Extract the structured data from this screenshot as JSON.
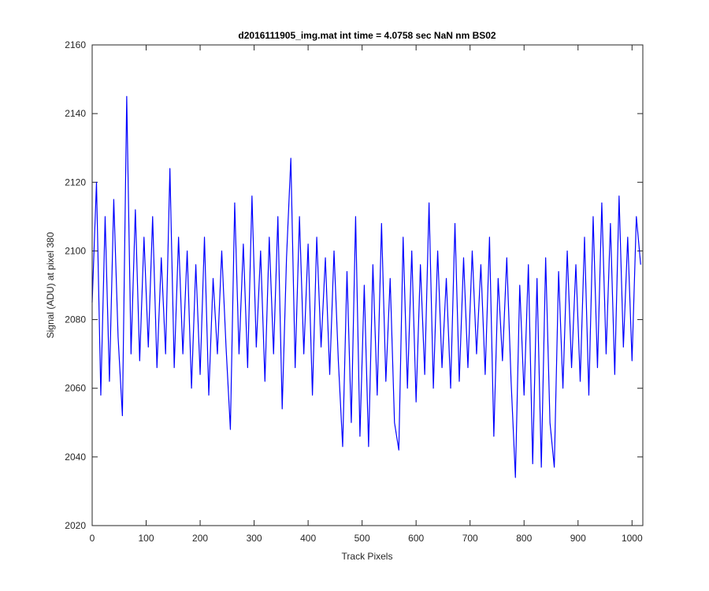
{
  "chart_data": {
    "type": "line",
    "title": "d2016111905_img.mat int time = 4.0758 sec  NaN nm BS02",
    "xlabel": "Track Pixels",
    "ylabel": "Signal (ADU) at pixel 380",
    "x": [
      0,
      8,
      16,
      24,
      32,
      40,
      48,
      56,
      64,
      72,
      80,
      88,
      96,
      104,
      112,
      120,
      128,
      136,
      144,
      152,
      160,
      168,
      176,
      184,
      192,
      200,
      208,
      216,
      224,
      232,
      240,
      248,
      256,
      264,
      272,
      280,
      288,
      296,
      304,
      312,
      320,
      328,
      336,
      344,
      352,
      360,
      368,
      376,
      384,
      392,
      400,
      408,
      416,
      424,
      432,
      440,
      448,
      456,
      464,
      472,
      480,
      488,
      496,
      504,
      512,
      520,
      528,
      536,
      544,
      552,
      560,
      568,
      576,
      584,
      592,
      600,
      608,
      616,
      624,
      632,
      640,
      648,
      656,
      664,
      672,
      680,
      688,
      696,
      704,
      712,
      720,
      728,
      736,
      744,
      752,
      760,
      768,
      776,
      784,
      792,
      800,
      808,
      816,
      824,
      832,
      840,
      848,
      856,
      864,
      872,
      880,
      888,
      896,
      904,
      912,
      920,
      928,
      936,
      944,
      952,
      960,
      968,
      976,
      984,
      992,
      1000,
      1008,
      1016
    ],
    "series": [
      {
        "name": "signal",
        "color": "#0000ff",
        "values": [
          2085,
          2120,
          2058,
          2110,
          2062,
          2115,
          2075,
          2052,
          2145,
          2070,
          2112,
          2068,
          2104,
          2072,
          2110,
          2066,
          2098,
          2070,
          2124,
          2066,
          2104,
          2070,
          2100,
          2060,
          2096,
          2064,
          2104,
          2058,
          2092,
          2070,
          2100,
          2072,
          2048,
          2114,
          2070,
          2102,
          2066,
          2116,
          2072,
          2100,
          2062,
          2104,
          2070,
          2110,
          2054,
          2098,
          2127,
          2066,
          2110,
          2070,
          2102,
          2058,
          2104,
          2072,
          2098,
          2064,
          2100,
          2068,
          2043,
          2094,
          2050,
          2110,
          2046,
          2090,
          2043,
          2096,
          2058,
          2108,
          2062,
          2092,
          2050,
          2042,
          2104,
          2060,
          2100,
          2056,
          2096,
          2064,
          2114,
          2060,
          2100,
          2066,
          2092,
          2060,
          2108,
          2062,
          2098,
          2066,
          2100,
          2070,
          2096,
          2064,
          2104,
          2046,
          2092,
          2068,
          2098,
          2062,
          2034,
          2090,
          2058,
          2096,
          2038,
          2092,
          2037,
          2098,
          2050,
          2037,
          2094,
          2060,
          2100,
          2066,
          2096,
          2062,
          2104,
          2058,
          2110,
          2066,
          2114,
          2070,
          2108,
          2064,
          2116,
          2072,
          2104,
          2068,
          2110,
          2096
        ]
      }
    ],
    "xlim": [
      0,
      1020
    ],
    "ylim": [
      2020,
      2160
    ],
    "xticks": [
      0,
      100,
      200,
      300,
      400,
      500,
      600,
      700,
      800,
      900,
      1000
    ],
    "yticks": [
      2020,
      2040,
      2060,
      2080,
      2100,
      2120,
      2140,
      2160
    ],
    "grid": false
  }
}
